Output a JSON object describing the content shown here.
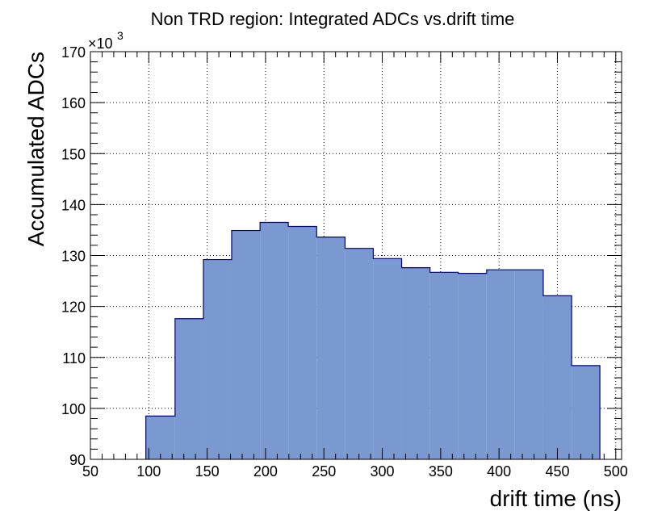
{
  "chart_data": {
    "type": "bar",
    "title": "Non TRD region: Integrated ADCs vs.drift time",
    "xlabel": "drift time (ns)",
    "ylabel": "Accumulated ADCs",
    "y_exponent_label": "×10",
    "y_exponent_power": "3",
    "xlim": [
      50,
      505
    ],
    "ylim": [
      90,
      170
    ],
    "x_ticks": [
      50,
      100,
      150,
      200,
      250,
      300,
      350,
      400,
      450,
      500
    ],
    "y_ticks": [
      90,
      100,
      110,
      120,
      130,
      140,
      150,
      160,
      170
    ],
    "grid": true,
    "bin_edges": [
      97.5,
      122.5,
      146.8,
      171.0,
      195.3,
      219.5,
      243.8,
      268.1,
      292.3,
      316.6,
      340.9,
      365.1,
      389.4,
      413.6,
      437.9,
      462.2,
      486.4
    ],
    "values": [
      98.5,
      117.6,
      129.2,
      134.9,
      136.5,
      135.7,
      133.6,
      131.4,
      129.4,
      127.6,
      126.7,
      126.5,
      127.2,
      127.2,
      122.1,
      108.4
    ],
    "colors": {
      "fill": "#7b99d1",
      "line": "#000080"
    }
  }
}
